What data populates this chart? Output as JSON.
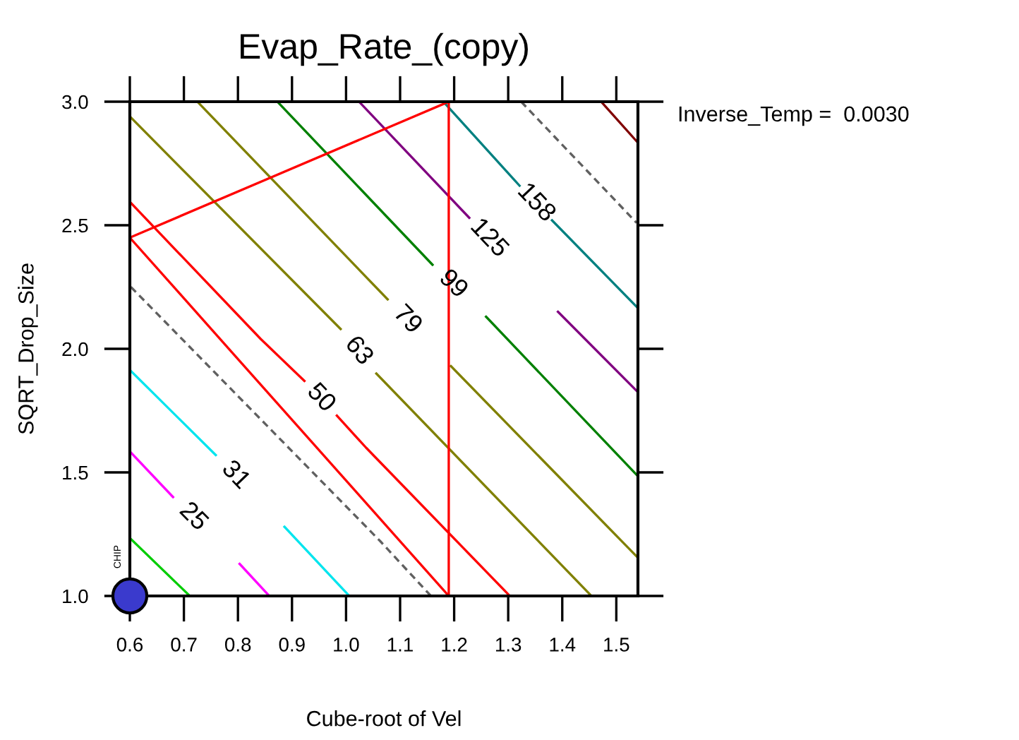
{
  "chart_data": {
    "type": "line",
    "title": "Evap_Rate_(copy)",
    "xlabel": "Cube-root of Vel",
    "ylabel": "SQRT_Drop_Size",
    "xlim": [
      0.6,
      1.54
    ],
    "ylim": [
      1.0,
      3.0
    ],
    "xticks": [
      {
        "value": 0.6,
        "label": "0.6"
      },
      {
        "value": 0.7,
        "label": "0.7"
      },
      {
        "value": 0.8,
        "label": "0.8"
      },
      {
        "value": 0.9,
        "label": "0.9"
      },
      {
        "value": 1.0,
        "label": "1.0"
      },
      {
        "value": 1.1,
        "label": "1.1"
      },
      {
        "value": 1.2,
        "label": "1.2"
      },
      {
        "value": 1.3,
        "label": "1.3"
      },
      {
        "value": 1.4,
        "label": "1.4"
      },
      {
        "value": 1.5,
        "label": "1.5"
      }
    ],
    "yticks": [
      {
        "value": 1.0,
        "label": "1.0"
      },
      {
        "value": 1.5,
        "label": "1.5"
      },
      {
        "value": 2.0,
        "label": "2.0"
      },
      {
        "value": 2.5,
        "label": "2.5"
      },
      {
        "value": 3.0,
        "label": "3.0"
      }
    ],
    "grid": false,
    "legend": false,
    "marker": "none",
    "line_style": "solid",
    "series": [
      {
        "color": "#00cc00",
        "x": [
          0.602,
          0.711
        ],
        "values": [
          1.23,
          1.0
        ]
      },
      {
        "name": "25",
        "color": "#ff00ff",
        "x": [
          0.602,
          0.68,
          null,
          0.803,
          0.858
        ],
        "values": [
          1.58,
          1.4,
          null,
          1.13,
          1.0
        ]
      },
      {
        "name": "31",
        "color": "#00e5ee",
        "x": [
          0.602,
          0.759,
          null,
          0.886,
          1.006
        ],
        "values": [
          1.91,
          1.57,
          null,
          1.28,
          1.0
        ]
      },
      {
        "color": "#606060",
        "line_style": "dashed",
        "x": [
          0.602,
          0.647,
          1.064,
          1.157
        ],
        "values": [
          2.25,
          2.15,
          1.22,
          1.0
        ]
      },
      {
        "name": "50",
        "color": "#ff0000",
        "x": [
          0.602,
          0.842,
          0.923,
          null,
          0.983,
          1.037,
          1.303
        ],
        "values": [
          2.59,
          2.04,
          1.87,
          null,
          1.73,
          1.6,
          1.0
        ]
      },
      {
        "name": "63",
        "color": "#808000",
        "x": [
          0.6,
          0.99,
          null,
          1.056,
          1.454
        ],
        "values": [
          2.94,
          2.08,
          null,
          1.9,
          1.0
        ]
      },
      {
        "name": "79",
        "color": "#808000",
        "x": [
          0.725,
          1.077,
          null,
          1.194,
          1.5375
        ],
        "values": [
          3.0,
          2.2,
          null,
          1.93,
          1.16
        ]
      },
      {
        "name": "99",
        "color": "#008000",
        "x": [
          0.873,
          1.16,
          null,
          1.259,
          1.5375
        ],
        "values": [
          3.0,
          2.34,
          null,
          2.13,
          1.49
        ]
      },
      {
        "name": "125",
        "color": "#800080",
        "x": [
          1.024,
          1.228,
          null,
          1.392,
          1.5375
        ],
        "values": [
          3.0,
          2.53,
          null,
          2.15,
          1.83
        ]
      },
      {
        "name": "158",
        "color": "#008080",
        "x": [
          1.18,
          1.321,
          null,
          1.381,
          1.5375
        ],
        "values": [
          3.0,
          2.66,
          null,
          2.52,
          2.17
        ]
      },
      {
        "color": "#606060",
        "line_style": "dashed",
        "x": [
          1.324,
          1.5375
        ],
        "values": [
          3.0,
          2.51
        ]
      },
      {
        "color": "#800000",
        "x": [
          1.472,
          1.5375
        ],
        "values": [
          3.0,
          2.84
        ]
      },
      {
        "color": "#ff0000",
        "x": [
          0.6,
          1.19
        ],
        "values": [
          2.45,
          3.0
        ]
      },
      {
        "color": "#ff0000",
        "x": [
          1.19,
          1.19
        ],
        "values": [
          3.0,
          1.0
        ]
      },
      {
        "color": "#ff0000",
        "x": [
          0.6,
          1.19
        ],
        "values": [
          2.45,
          1.0
        ]
      },
      {
        "type": "scatter",
        "marker": "circle",
        "color": "#3a3acd",
        "x": [
          0.6
        ],
        "values": [
          1.0
        ]
      }
    ],
    "annotations": [
      {
        "text": "CHIP",
        "x": 0.6,
        "y": 1.0
      },
      "Inverse_Temp =  0.0030"
    ]
  }
}
